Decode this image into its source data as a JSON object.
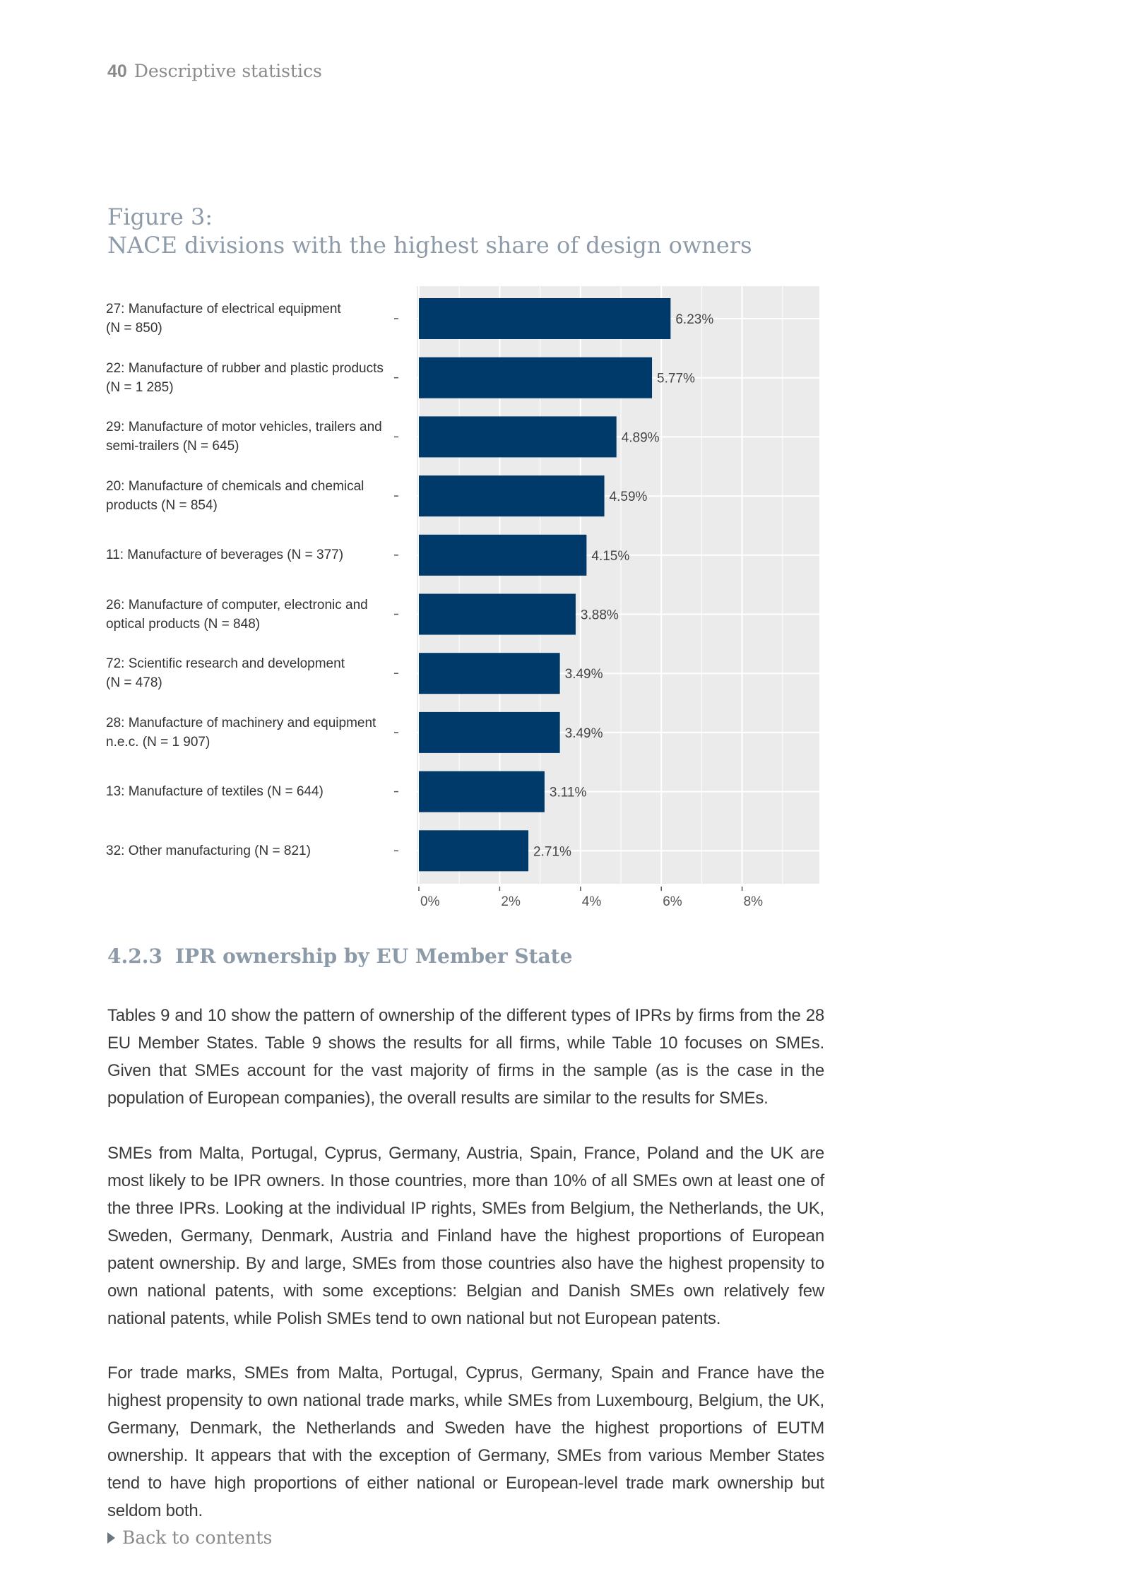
{
  "header": {
    "page_number": "40",
    "section": "Descriptive statistics"
  },
  "figure": {
    "title_line1": "Figure 3:",
    "title_line2": "NACE divisions with the highest share of design owners"
  },
  "chart_data": {
    "type": "bar",
    "orientation": "horizontal",
    "categories": [
      [
        "27: Manufacture of electrical equipment",
        "(N = 850)"
      ],
      [
        "22: Manufacture of rubber and plastic products",
        "(N = 1 285)"
      ],
      [
        "29: Manufacture of motor vehicles, trailers and",
        "semi-trailers (N = 645)"
      ],
      [
        "20: Manufacture of chemicals and chemical",
        "products (N = 854)"
      ],
      [
        "11: Manufacture of beverages (N = 377)"
      ],
      [
        "26: Manufacture of computer, electronic and",
        "optical products (N = 848)"
      ],
      [
        "72: Scientific research and development",
        "(N = 478)"
      ],
      [
        "28: Manufacture of machinery and equipment",
        "n.e.c. (N = 1 907)"
      ],
      [
        "13: Manufacture of textiles (N = 644)"
      ],
      [
        "32: Other manufacturing (N = 821)"
      ]
    ],
    "values": [
      6.23,
      5.77,
      4.89,
      4.59,
      4.15,
      3.88,
      3.49,
      3.49,
      3.11,
      2.71
    ],
    "value_labels": [
      "6.23%",
      "5.77%",
      "4.89%",
      "4.59%",
      "4.15%",
      "3.88%",
      "3.49%",
      "3.49%",
      "3.11%",
      "2.71%"
    ],
    "xticks": [
      0,
      2,
      4,
      6,
      8
    ],
    "xtick_labels": [
      "0%",
      "2%",
      "4%",
      "6%",
      "8%"
    ],
    "xlim": [
      0,
      10
    ],
    "grid": true,
    "bar_color": "#003a6b",
    "panel_color": "#ebebeb"
  },
  "section": {
    "number": "4.2.3",
    "title": "IPR ownership by EU Member State"
  },
  "paragraphs": [
    "Tables 9 and 10 show the pattern of ownership of the different types of IPRs by firms from the 28 EU Member States. Table 9 shows the results for all firms, while Table 10 focuses on SMEs. Given that SMEs account for the vast majority of firms in the sample (as is the case in the population of European companies), the overall results are similar to the results for SMEs.",
    "SMEs from Malta, Portugal, Cyprus, Germany, Austria, Spain, France, Poland and the UK are most likely to be IPR owners. In those countries, more than 10% of all SMEs own at least one of the three IPRs. Looking at the individual IP rights, SMEs from Belgium, the Netherlands, the UK, Sweden, Germany, Denmark, Austria and Finland have the highest proportions of European patent ownership. By and large, SMEs from those countries also have the highest propensity to own national patents, with some exceptions: Belgian and Danish SMEs own relatively few national patents, while Polish SMEs tend to own national but not European patents.",
    "For trade marks, SMEs from Malta, Portugal, Cyprus, Germany, Spain and France have the highest propensity to own national trade marks, while SMEs from Luxembourg, Belgium, the UK, Germany, Denmark, the Netherlands and Sweden have the highest proportions of EUTM ownership. It appears that with the exception of Germany, SMEs from various Member States tend to have high proportions of either national or European-level trade mark ownership but seldom both."
  ],
  "footer": {
    "back_label": "Back to contents",
    "back_icon": "triangle-right-icon"
  }
}
